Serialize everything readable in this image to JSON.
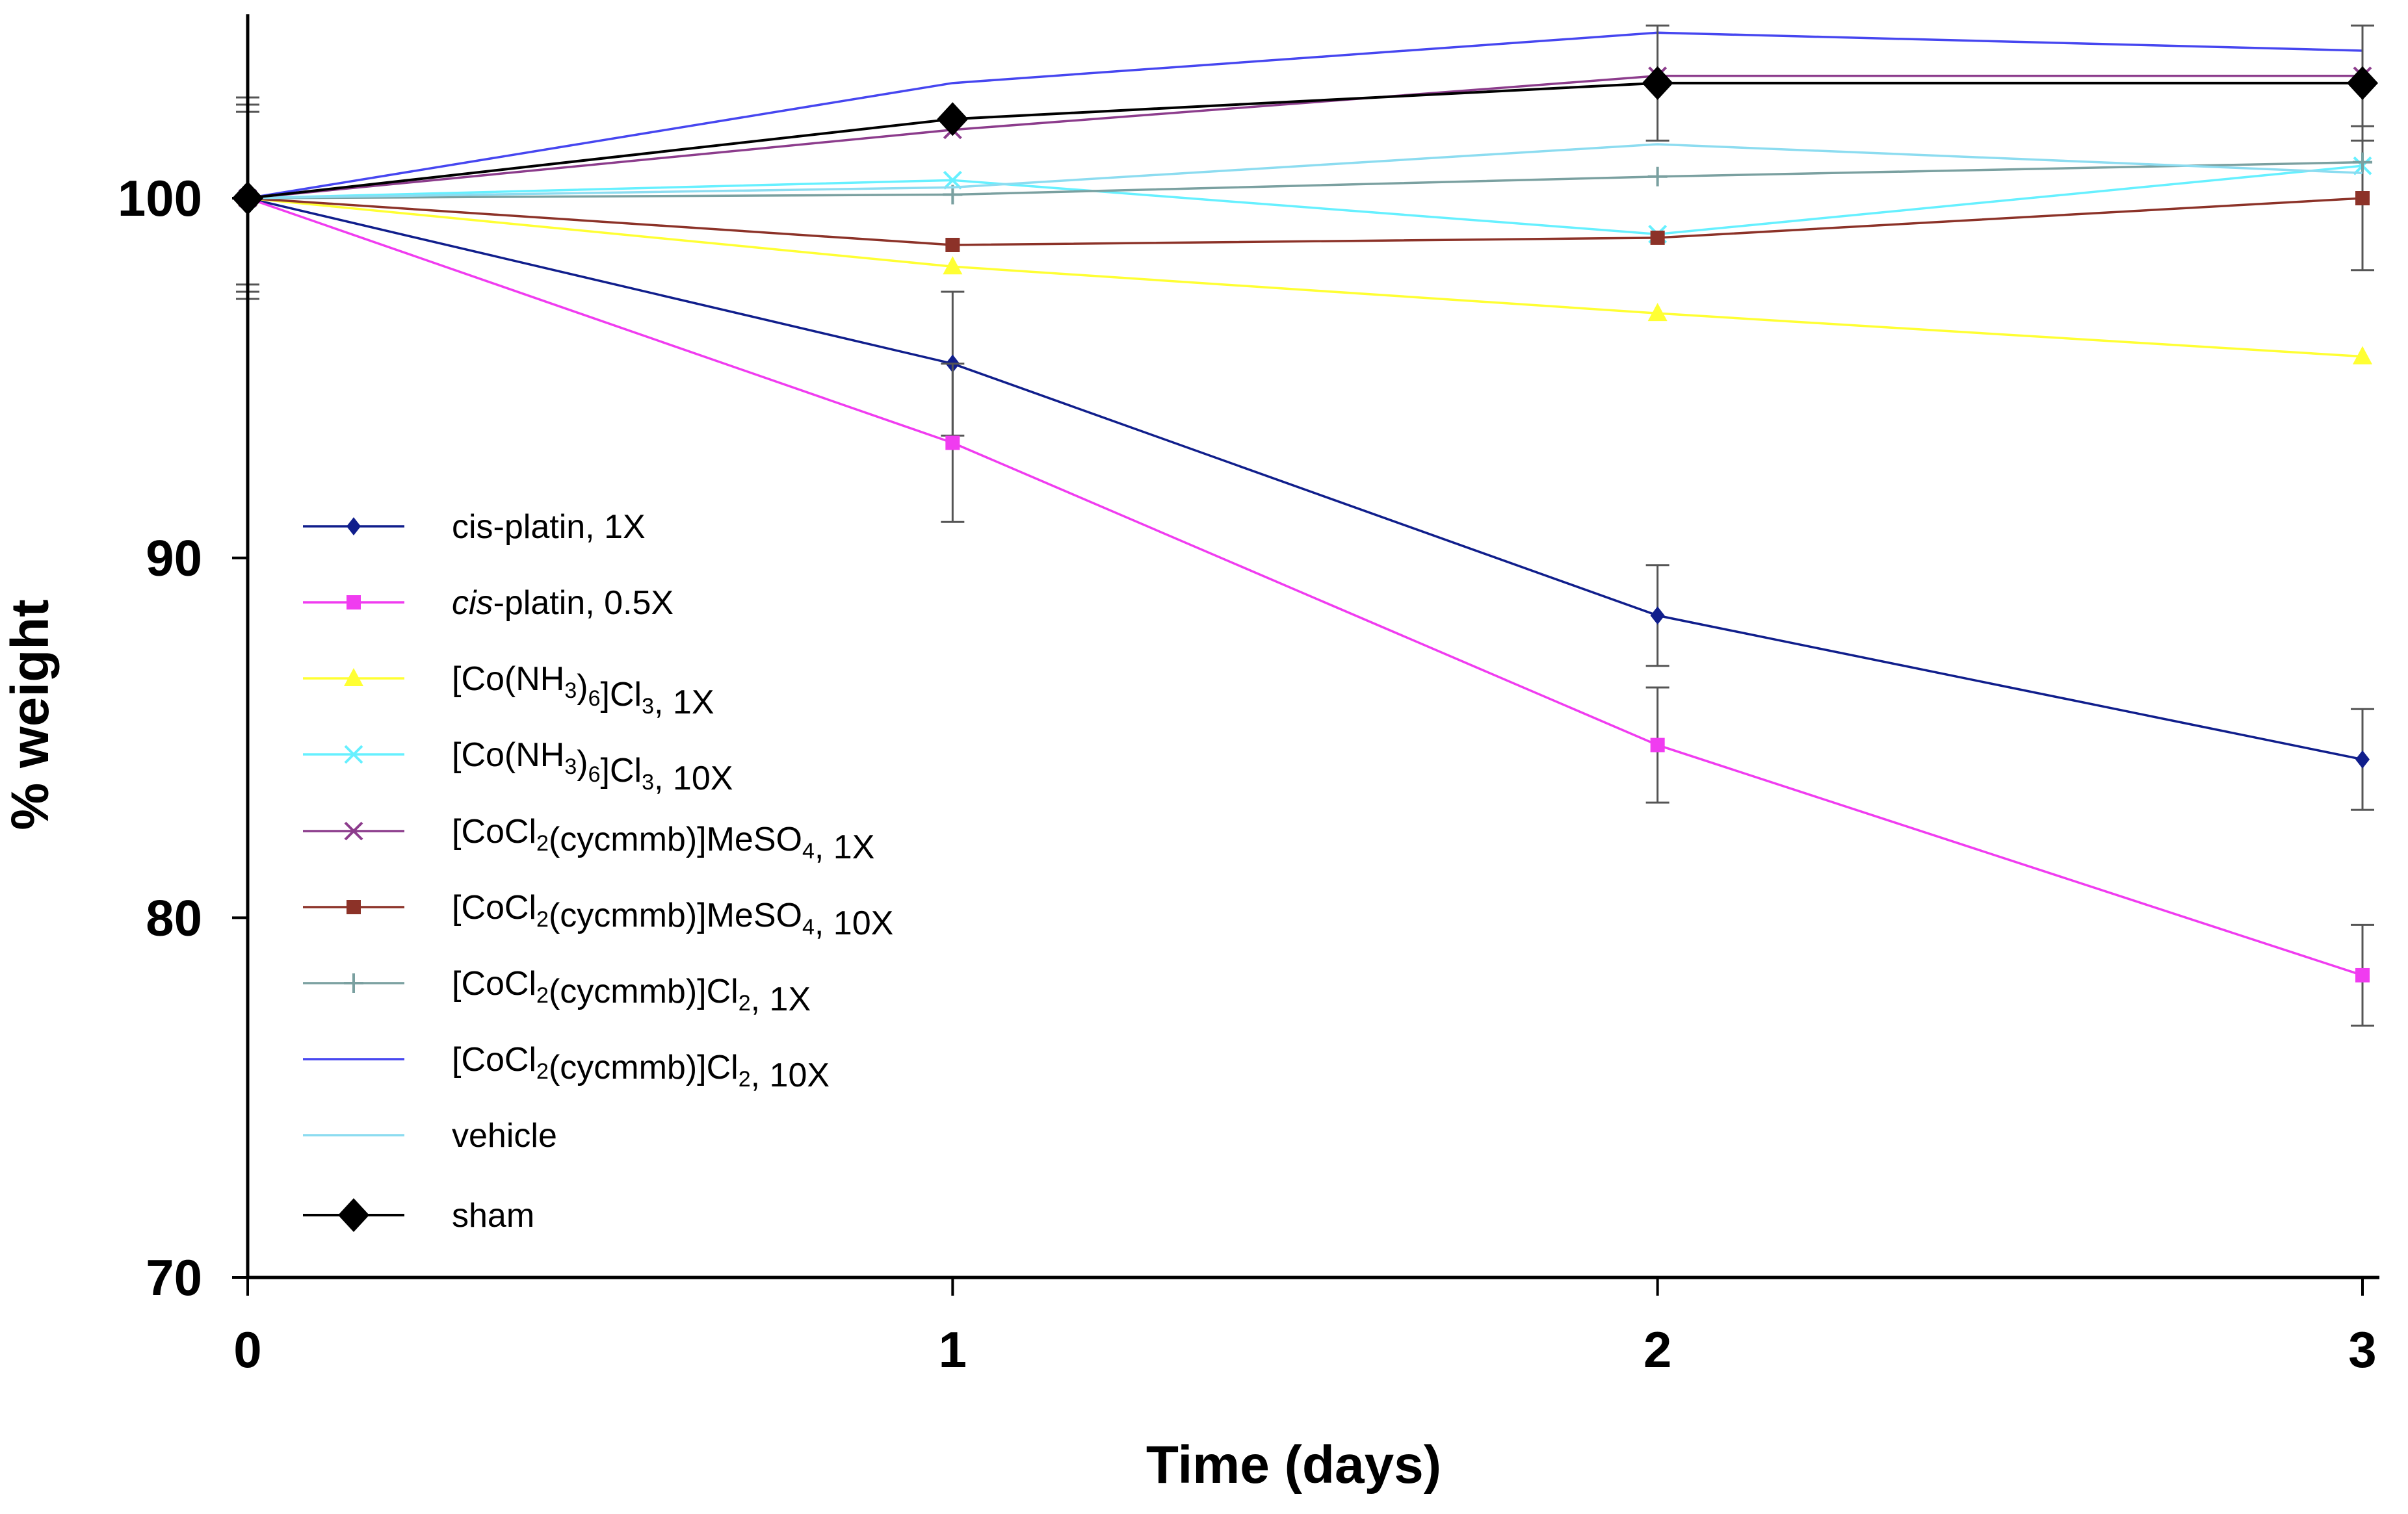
{
  "chart_data": {
    "type": "line",
    "title": "",
    "xlabel": "Time (days)",
    "ylabel": "% weight",
    "x": [
      0,
      1,
      2,
      3
    ],
    "xlim": [
      0,
      3
    ],
    "ylim": [
      70,
      105
    ],
    "x_ticks": [
      "0",
      "1",
      "2",
      "3"
    ],
    "y_ticks": [
      {
        "value": 70,
        "label": "70"
      },
      {
        "value": 80,
        "label": "80"
      },
      {
        "value": 90,
        "label": "90"
      },
      {
        "value": 100,
        "label": "100"
      }
    ],
    "grid": false,
    "legend_position": "left-center",
    "series": [
      {
        "name": "cis-platin, 1X",
        "label_parts": [
          [
            "cis-platin, 1X",
            ""
          ]
        ],
        "color": "#101e8c",
        "marker": "diamond",
        "values": [
          100,
          95.4,
          88.4,
          84.4
        ],
        "errors": [
          2.4,
          2.0,
          1.4,
          1.4
        ]
      },
      {
        "name": "cis-platin, 0.5X",
        "label_parts": [
          [
            "cis",
            "italic"
          ],
          [
            "-platin, 0.5X",
            ""
          ]
        ],
        "color": "#f03cf0",
        "marker": "square",
        "values": [
          100,
          93.2,
          84.8,
          78.4
        ],
        "errors": [
          2.6,
          2.2,
          1.6,
          1.4
        ]
      },
      {
        "name": "[Co(NH3)6]Cl3, 1X",
        "label_parts": [
          [
            "[Co(NH",
            ""
          ],
          [
            "3",
            "sub"
          ],
          [
            ")",
            ""
          ],
          [
            "6",
            "sub"
          ],
          [
            "]Cl",
            ""
          ],
          [
            "3",
            "sub"
          ],
          [
            ", 1X",
            ""
          ]
        ],
        "color": "#ffff33",
        "marker": "triangle",
        "values": [
          100,
          98.1,
          96.8,
          95.6
        ],
        "errors": [
          0,
          0,
          0,
          0
        ]
      },
      {
        "name": "[Co(NH3)6]Cl3, 10X",
        "label_parts": [
          [
            "[Co(NH",
            ""
          ],
          [
            "3",
            "sub"
          ],
          [
            ")",
            ""
          ],
          [
            "6",
            "sub"
          ],
          [
            "]Cl",
            ""
          ],
          [
            "3",
            "sub"
          ],
          [
            ", 10X",
            ""
          ]
        ],
        "color": "#66f0ff",
        "marker": "x",
        "values": [
          100,
          100.5,
          99.0,
          100.9
        ],
        "errors": [
          0,
          0,
          0,
          0
        ]
      },
      {
        "name": "[CoCl2(cycmmb)]MeSO4, 1X",
        "label_parts": [
          [
            "[CoCl",
            ""
          ],
          [
            "2",
            "sub"
          ],
          [
            "(cycmmb)]MeSO",
            ""
          ],
          [
            "4",
            "sub"
          ],
          [
            ", 1X",
            ""
          ]
        ],
        "color": "#8c3c8c",
        "marker": "x",
        "values": [
          100,
          101.9,
          103.4,
          103.4
        ],
        "errors": [
          0,
          0,
          0,
          0
        ]
      },
      {
        "name": "[CoCl2(cycmmb)]MeSO4, 10X",
        "label_parts": [
          [
            "[CoCl",
            ""
          ],
          [
            "2",
            "sub"
          ],
          [
            "(cycmmb)]MeSO",
            ""
          ],
          [
            "4",
            "sub"
          ],
          [
            ", 10X",
            ""
          ]
        ],
        "color": "#8c3228",
        "marker": "square",
        "values": [
          100,
          98.7,
          98.9,
          100.0
        ],
        "errors": [
          0,
          0,
          0,
          2.0
        ]
      },
      {
        "name": "[CoCl2(cycmmb)]Cl2, 1X",
        "label_parts": [
          [
            "[CoCl",
            ""
          ],
          [
            "2",
            "sub"
          ],
          [
            "(cycmmb)]Cl",
            ""
          ],
          [
            "2",
            "sub"
          ],
          [
            ", 1X",
            ""
          ]
        ],
        "color": "#7aa0a0",
        "marker": "plus",
        "values": [
          100,
          100.1,
          100.6,
          101.0
        ],
        "errors": [
          0,
          0,
          0,
          0
        ]
      },
      {
        "name": "[CoCl2(cycmmb)]Cl2, 10X",
        "label_parts": [
          [
            "[CoCl",
            ""
          ],
          [
            "2",
            "sub"
          ],
          [
            "(cycmmb)]Cl",
            ""
          ],
          [
            "2",
            "sub"
          ],
          [
            ", 10X",
            ""
          ]
        ],
        "color": "#4646f0",
        "marker": "none",
        "values": [
          100,
          103.2,
          104.6,
          104.1
        ],
        "errors": [
          2.8,
          0,
          0,
          0
        ]
      },
      {
        "name": "vehicle",
        "label_parts": [
          [
            "vehicle",
            ""
          ]
        ],
        "color": "#8cdcf0",
        "marker": "none",
        "values": [
          100,
          100.3,
          101.5,
          100.7
        ],
        "errors": [
          0,
          0,
          0,
          0
        ]
      },
      {
        "name": "sham",
        "label_parts": [
          [
            "sham",
            ""
          ]
        ],
        "color": "#000000",
        "marker": "bigdiamond",
        "values": [
          100,
          102.2,
          103.2,
          103.2
        ],
        "errors": [
          0,
          0,
          1.6,
          1.6
        ]
      }
    ]
  }
}
